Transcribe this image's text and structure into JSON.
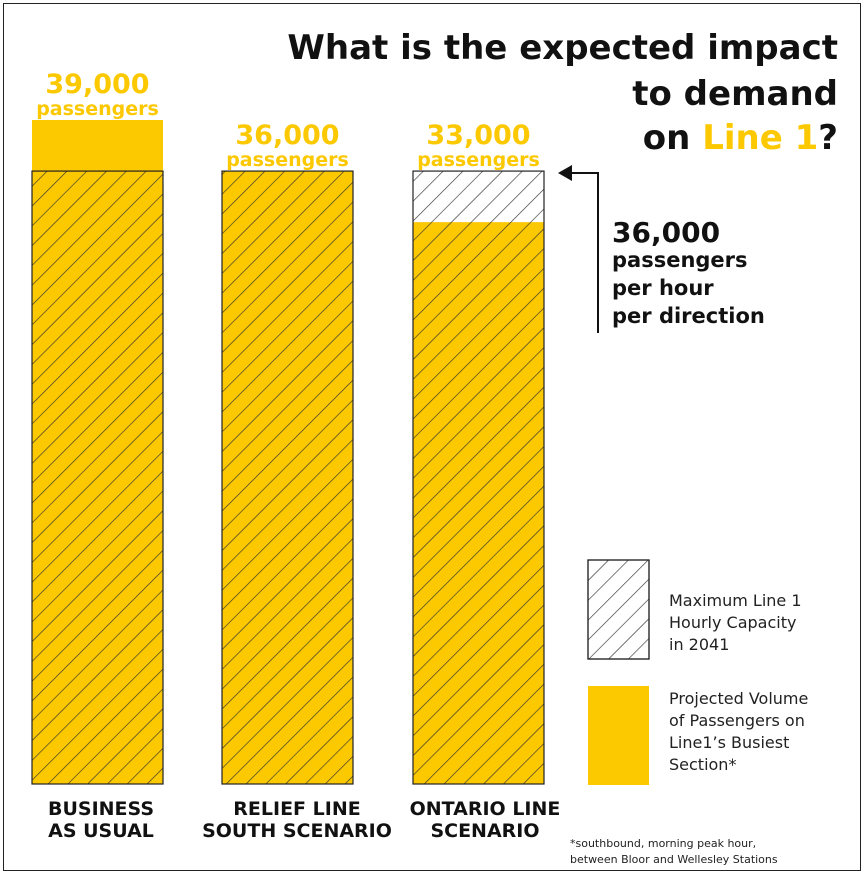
{
  "title": {
    "line1": "What is the expected impact",
    "line2": "to demand",
    "line3_prefix": "on ",
    "line3_accent": "Line 1",
    "line3_suffix": "?"
  },
  "annotation": {
    "value": "36,000",
    "line1": "passengers",
    "line2": "per hour",
    "line3": "per direction"
  },
  "legend": {
    "capacity": [
      "Maximum Line 1",
      "Hourly Capacity",
      "in 2041"
    ],
    "volume": [
      "Projected Volume",
      "of Passengers on",
      "Line1’s Busiest",
      "Section*"
    ]
  },
  "footnote": [
    "*southbound, morning peak hour,",
    "between Bloor and Wellesley Stations"
  ],
  "colors": {
    "accent": "#fcc800",
    "hatch": "#333333",
    "text": "#111111"
  },
  "chart_data": {
    "type": "bar",
    "categories": [
      "BUSINESS AS USUAL",
      "RELIEF LINE SOUTH SCENARIO",
      "ONTARIO LINE SCENARIO"
    ],
    "category_lines": [
      [
        "BUSINESS",
        "AS USUAL"
      ],
      [
        "RELIEF LINE",
        "SOUTH SCENARIO"
      ],
      [
        "ONTARIO LINE",
        "SCENARIO"
      ]
    ],
    "series": [
      {
        "name": "Projected Volume of Passengers on Line1’s Busiest Section*",
        "values": [
          39000,
          36000,
          33000
        ]
      },
      {
        "name": "Maximum Line 1 Hourly Capacity in 2041",
        "values": [
          36000,
          36000,
          36000
        ]
      }
    ],
    "value_labels": [
      "39,000",
      "36,000",
      "33,000"
    ],
    "unit_label": "passengers",
    "capacity_value": 36000,
    "ylim": [
      0,
      39000
    ],
    "title": "What is the expected impact to demand on Line 1?",
    "xlabel": "",
    "ylabel": "",
    "grid": false
  }
}
